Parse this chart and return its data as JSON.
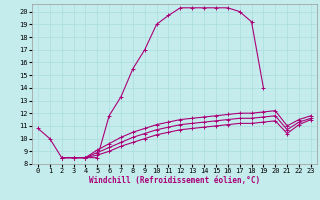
{
  "bg_color": "#c5eced",
  "line_color": "#aa0077",
  "grid_color": "#aadddd",
  "xlabel": "Windchill (Refroidissement éolien,°C)",
  "xlim": [
    -0.5,
    23.5
  ],
  "ylim": [
    8,
    20.6
  ],
  "xticks": [
    0,
    1,
    2,
    3,
    4,
    5,
    6,
    7,
    8,
    9,
    10,
    11,
    12,
    13,
    14,
    15,
    16,
    17,
    18,
    19,
    20,
    21,
    22,
    23
  ],
  "yticks": [
    8,
    9,
    10,
    11,
    12,
    13,
    14,
    15,
    16,
    17,
    18,
    19,
    20
  ],
  "curve_main_x": [
    0,
    1,
    2,
    3,
    4,
    5,
    6,
    7,
    8,
    9,
    10,
    11,
    12,
    13,
    14,
    15,
    16,
    17,
    18,
    19
  ],
  "curve_main_y": [
    10.8,
    10.0,
    8.5,
    8.5,
    8.5,
    8.5,
    11.8,
    13.3,
    15.5,
    17.0,
    19.0,
    19.7,
    20.3,
    20.3,
    20.3,
    20.3,
    20.3,
    20.0,
    19.2,
    14.0
  ],
  "curve_low1_x": [
    2,
    3,
    4,
    5,
    6,
    7,
    8,
    9,
    10,
    11,
    12,
    13,
    14,
    15,
    16,
    17,
    18,
    19,
    20,
    21,
    22,
    23
  ],
  "curve_low1_y": [
    8.5,
    8.5,
    8.5,
    8.7,
    9.0,
    9.4,
    9.7,
    10.0,
    10.3,
    10.5,
    10.7,
    10.8,
    10.9,
    11.0,
    11.1,
    11.2,
    11.2,
    11.3,
    11.4,
    10.4,
    11.1,
    11.5
  ],
  "curve_low2_x": [
    2,
    3,
    4,
    5,
    6,
    7,
    8,
    9,
    10,
    11,
    12,
    13,
    14,
    15,
    16,
    17,
    18,
    19,
    20,
    21,
    22,
    23
  ],
  "curve_low2_y": [
    8.5,
    8.5,
    8.5,
    8.9,
    9.3,
    9.7,
    10.1,
    10.4,
    10.7,
    10.9,
    11.1,
    11.2,
    11.3,
    11.4,
    11.5,
    11.6,
    11.6,
    11.7,
    11.8,
    10.7,
    11.3,
    11.6
  ],
  "curve_low3_x": [
    2,
    3,
    4,
    5,
    6,
    7,
    8,
    9,
    10,
    11,
    12,
    13,
    14,
    15,
    16,
    17,
    18,
    19,
    20,
    21,
    22,
    23
  ],
  "curve_low3_y": [
    8.5,
    8.5,
    8.5,
    9.1,
    9.6,
    10.1,
    10.5,
    10.8,
    11.1,
    11.3,
    11.5,
    11.6,
    11.7,
    11.8,
    11.9,
    12.0,
    12.0,
    12.1,
    12.2,
    11.0,
    11.5,
    11.8
  ]
}
